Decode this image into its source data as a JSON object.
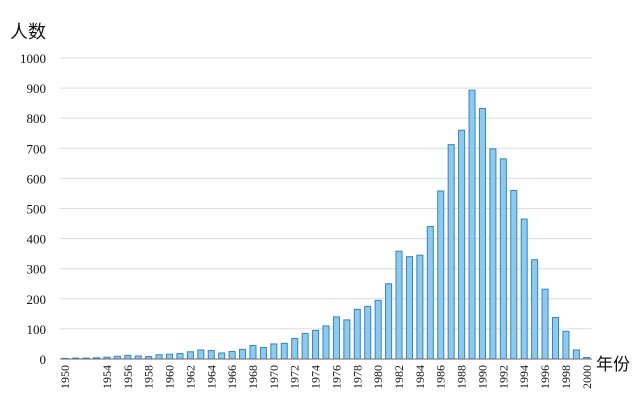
{
  "chart_data": {
    "type": "bar",
    "ylabel": "人数",
    "xlabel": "年份",
    "ylim": [
      0,
      1000
    ],
    "yticks": [
      0,
      100,
      200,
      300,
      400,
      500,
      600,
      700,
      800,
      900,
      1000
    ],
    "x_tick_labels": [
      "1950",
      "1954",
      "1956",
      "1958",
      "1960",
      "1962",
      "1964",
      "1966",
      "1968",
      "1970",
      "1972",
      "1974",
      "1976",
      "1978",
      "1980",
      "1982",
      "1984",
      "1986",
      "1988",
      "1990",
      "1992",
      "1994",
      "1996",
      "1998",
      "2000"
    ],
    "grid": true,
    "categories": [
      "1950",
      "1951",
      "1952",
      "1953",
      "1954",
      "1955",
      "1956",
      "1957",
      "1958",
      "1959",
      "1960",
      "1961",
      "1962",
      "1963",
      "1964",
      "1965",
      "1966",
      "1967",
      "1968",
      "1969",
      "1970",
      "1971",
      "1972",
      "1973",
      "1974",
      "1975",
      "1976",
      "1977",
      "1978",
      "1979",
      "1980",
      "1981",
      "1982",
      "1983",
      "1984",
      "1985",
      "1986",
      "1987",
      "1988",
      "1989",
      "1990",
      "1991",
      "1992",
      "1993",
      "1994",
      "1995",
      "1996",
      "1997",
      "1998",
      "1999",
      "2000"
    ],
    "values": [
      2,
      3,
      3,
      4,
      6,
      9,
      12,
      10,
      8,
      14,
      16,
      18,
      24,
      30,
      28,
      20,
      25,
      32,
      45,
      38,
      50,
      52,
      68,
      85,
      95,
      110,
      140,
      130,
      165,
      175,
      195,
      250,
      358,
      340,
      345,
      440,
      558,
      712,
      760,
      893,
      832,
      698,
      665,
      560,
      465,
      330,
      232,
      138,
      92,
      30,
      5
    ]
  }
}
